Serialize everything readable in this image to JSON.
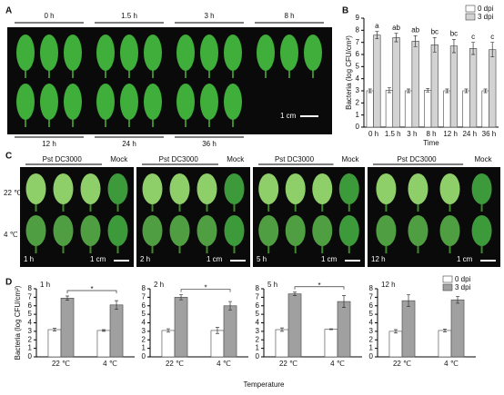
{
  "panel_a": {
    "label": "A",
    "top_times": [
      "0 h",
      "1.5 h",
      "3 h",
      "8 h"
    ],
    "bottom_times": [
      "12 h",
      "24 h",
      "36 h"
    ],
    "scale": "1 cm"
  },
  "panel_b": {
    "label": "B"
  },
  "panel_c": {
    "label": "C",
    "rows": [
      "22 ℃",
      "4 ℃"
    ],
    "blocks": [
      {
        "treatment": "Pst DC3000",
        "control": "Mock",
        "time": "1 h",
        "scale": "1 cm"
      },
      {
        "treatment": "Pst DC3000",
        "control": "Mock",
        "time": "2 h",
        "scale": "1 cm"
      },
      {
        "treatment": "Pst DC3000",
        "control": "Mock",
        "time": "5 h",
        "scale": "1 cm"
      },
      {
        "treatment": "Pst DC3000",
        "control": "Mock",
        "time": "12 h",
        "scale": "1 cm"
      }
    ]
  },
  "panel_d": {
    "label": "D",
    "xlabel": "Temperature"
  },
  "chart_data": [
    {
      "type": "bar",
      "ylabel": "Bacteria (log CFU/cm²)",
      "xlabel": "Time",
      "categories": [
        "0 h",
        "1.5 h",
        "3 h",
        "8 h",
        "12 h",
        "24 h",
        "36 h"
      ],
      "series": [
        {
          "name": "0 dpi",
          "color": "#ffffff",
          "values": [
            3.0,
            3.05,
            3.0,
            3.05,
            3.0,
            3.0,
            3.0
          ],
          "errors": [
            0.15,
            0.2,
            0.15,
            0.15,
            0.15,
            0.15,
            0.15
          ]
        },
        {
          "name": "3 dpi",
          "color": "#d3d3d3",
          "values": [
            7.6,
            7.4,
            7.1,
            6.8,
            6.7,
            6.5,
            6.4
          ],
          "errors": [
            0.3,
            0.35,
            0.45,
            0.6,
            0.55,
            0.5,
            0.6
          ],
          "labels": [
            "a",
            "ab",
            "ab",
            "bc",
            "bc",
            "c",
            "c"
          ]
        }
      ],
      "ylim": [
        0,
        9
      ],
      "yticks": [
        0,
        1,
        2,
        3,
        4,
        5,
        6,
        7,
        8,
        9
      ],
      "legend": "upper right"
    },
    {
      "type": "bar",
      "title": "1 h",
      "ylabel": "Bacteria (log CFU/cm²)",
      "categories": [
        "22 ℃",
        "4 ℃"
      ],
      "significance": "*",
      "series": [
        {
          "name": "0 dpi",
          "color": "#ffffff",
          "values": [
            3.2,
            3.1
          ],
          "errors": [
            0.15,
            0.1
          ]
        },
        {
          "name": "3 dpi",
          "color": "#a0a0a0",
          "values": [
            6.9,
            6.1
          ],
          "errors": [
            0.25,
            0.5
          ]
        }
      ],
      "ylim": [
        0,
        8
      ],
      "yticks": [
        0,
        1,
        2,
        3,
        4,
        5,
        6,
        7,
        8
      ]
    },
    {
      "type": "bar",
      "title": "2 h",
      "categories": [
        "22 ℃",
        "4 ℃"
      ],
      "significance": "*",
      "series": [
        {
          "name": "0 dpi",
          "color": "#ffffff",
          "values": [
            3.1,
            3.1
          ],
          "errors": [
            0.2,
            0.35
          ]
        },
        {
          "name": "3 dpi",
          "color": "#a0a0a0",
          "values": [
            7.0,
            6.0
          ],
          "errors": [
            0.3,
            0.5
          ]
        }
      ],
      "ylim": [
        0,
        8
      ],
      "yticks": [
        0,
        1,
        2,
        3,
        4,
        5,
        6,
        7,
        8
      ]
    },
    {
      "type": "bar",
      "title": "5 h",
      "categories": [
        "22 ℃",
        "4 ℃"
      ],
      "significance": "*",
      "series": [
        {
          "name": "0 dpi",
          "color": "#ffffff",
          "values": [
            3.2,
            3.25
          ],
          "errors": [
            0.2,
            0.05
          ]
        },
        {
          "name": "3 dpi",
          "color": "#a0a0a0",
          "values": [
            7.4,
            6.5
          ],
          "errors": [
            0.2,
            0.7
          ]
        }
      ],
      "ylim": [
        0,
        8
      ],
      "yticks": [
        0,
        1,
        2,
        3,
        4,
        5,
        6,
        7,
        8
      ]
    },
    {
      "type": "bar",
      "title": "12 h",
      "categories": [
        "22 ℃",
        "4 ℃"
      ],
      "series": [
        {
          "name": "0 dpi",
          "color": "#ffffff",
          "values": [
            3.0,
            3.1
          ],
          "errors": [
            0.2,
            0.15
          ]
        },
        {
          "name": "3 dpi",
          "color": "#a0a0a0",
          "values": [
            6.6,
            6.7
          ],
          "errors": [
            0.7,
            0.4
          ]
        }
      ],
      "ylim": [
        0,
        8
      ],
      "yticks": [
        0,
        1,
        2,
        3,
        4,
        5,
        6,
        7,
        8
      ],
      "legend": "upper right"
    }
  ]
}
